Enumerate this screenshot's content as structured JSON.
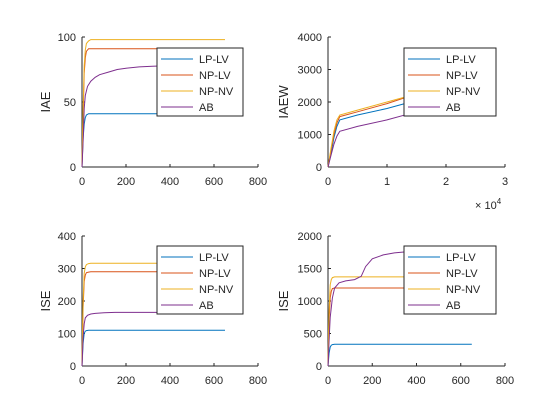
{
  "figure": {
    "background": "#ffffff",
    "axis_color": "#262626"
  },
  "chart_data": [
    {
      "type": "line",
      "ylabel": "IAE",
      "xlim": [
        0,
        800
      ],
      "ylim": [
        0,
        100
      ],
      "xticks": [
        0,
        200,
        400,
        600,
        800
      ],
      "yticks": [
        0,
        50,
        100
      ],
      "legend_position": "top-right",
      "series": [
        {
          "name": "LP-LV",
          "color": "#0072BD",
          "x": [
            0,
            5,
            10,
            15,
            20,
            30,
            40,
            60,
            80,
            120,
            200,
            400,
            650
          ],
          "y": [
            0,
            22,
            33,
            38,
            40,
            41,
            41,
            41,
            41,
            41,
            41,
            41,
            41
          ]
        },
        {
          "name": "NP-LV",
          "color": "#D95319",
          "x": [
            0,
            5,
            10,
            15,
            20,
            30,
            40,
            60,
            80,
            120,
            200,
            400,
            650
          ],
          "y": [
            0,
            38,
            72,
            84,
            89,
            91,
            91,
            91,
            91,
            91,
            91,
            91,
            91
          ]
        },
        {
          "name": "NP-NV",
          "color": "#EDB120",
          "x": [
            0,
            5,
            10,
            15,
            20,
            30,
            40,
            60,
            80,
            120,
            200,
            400,
            650
          ],
          "y": [
            0,
            45,
            78,
            90,
            95,
            97,
            98,
            98,
            98,
            98,
            98,
            98,
            98
          ]
        },
        {
          "name": "AB",
          "color": "#7E2F8E",
          "x": [
            0,
            5,
            10,
            15,
            25,
            40,
            60,
            80,
            120,
            160,
            200,
            260,
            320,
            400
          ],
          "y": [
            0,
            20,
            45,
            55,
            62,
            66,
            69,
            71,
            73,
            75,
            76,
            77,
            77.5,
            78
          ]
        }
      ]
    },
    {
      "type": "line",
      "ylabel": "IAEW",
      "xlim": [
        0,
        3
      ],
      "ylim": [
        0,
        4000
      ],
      "xticks": [
        0,
        1,
        2,
        3
      ],
      "yticks": [
        0,
        1000,
        2000,
        3000,
        4000
      ],
      "x_exponent": "× 10^4",
      "legend_position": "top-right",
      "series": [
        {
          "name": "LP-LV",
          "color": "#0072BD",
          "x": [
            0,
            0.05,
            0.1,
            0.15,
            0.2,
            0.5,
            1.0,
            1.5,
            2.0,
            2.5,
            2.75
          ],
          "y": [
            0,
            400,
            900,
            1250,
            1450,
            1600,
            1800,
            2050,
            2350,
            2650,
            2800
          ]
        },
        {
          "name": "NP-LV",
          "color": "#D95319",
          "x": [
            0,
            0.05,
            0.1,
            0.15,
            0.2,
            0.5,
            1.0,
            1.5,
            2.0,
            2.5,
            2.85
          ],
          "y": [
            0,
            500,
            1000,
            1350,
            1550,
            1700,
            1950,
            2250,
            2550,
            2850,
            3050
          ]
        },
        {
          "name": "NP-NV",
          "color": "#EDB120",
          "x": [
            0,
            0.05,
            0.1,
            0.15,
            0.2,
            0.5,
            1.0,
            1.5,
            2.0,
            2.5,
            2.85
          ],
          "y": [
            0,
            550,
            1100,
            1450,
            1600,
            1750,
            2000,
            2250,
            2500,
            2750,
            2900
          ]
        },
        {
          "name": "AB",
          "color": "#7E2F8E",
          "x": [
            0,
            0.05,
            0.1,
            0.15,
            0.2,
            0.5,
            1.0,
            1.5,
            2.0,
            2.5,
            2.85
          ],
          "y": [
            0,
            350,
            700,
            950,
            1100,
            1250,
            1450,
            1700,
            1950,
            2200,
            2400
          ]
        }
      ]
    },
    {
      "type": "line",
      "ylabel": "ISE",
      "xlim": [
        0,
        800
      ],
      "ylim": [
        0,
        400
      ],
      "xticks": [
        0,
        200,
        400,
        600,
        800
      ],
      "yticks": [
        0,
        100,
        200,
        300,
        400
      ],
      "legend_position": "top-right",
      "series": [
        {
          "name": "LP-LV",
          "color": "#0072BD",
          "x": [
            0,
            5,
            10,
            15,
            20,
            30,
            40,
            60,
            100,
            200,
            400,
            650
          ],
          "y": [
            0,
            70,
            100,
            107,
            109,
            110,
            110,
            110,
            110,
            110,
            110,
            110
          ]
        },
        {
          "name": "NP-LV",
          "color": "#D95319",
          "x": [
            0,
            5,
            10,
            15,
            20,
            30,
            40,
            60,
            100,
            200,
            400,
            650
          ],
          "y": [
            0,
            180,
            260,
            280,
            287,
            289,
            290,
            290,
            290,
            290,
            290,
            290
          ]
        },
        {
          "name": "NP-NV",
          "color": "#EDB120",
          "x": [
            0,
            5,
            10,
            15,
            20,
            30,
            40,
            60,
            100,
            200,
            400,
            650
          ],
          "y": [
            0,
            200,
            285,
            305,
            312,
            315,
            316,
            316,
            316,
            316,
            316,
            316
          ]
        },
        {
          "name": "AB",
          "color": "#7E2F8E",
          "x": [
            0,
            5,
            10,
            15,
            25,
            40,
            60,
            100,
            150,
            200,
            300,
            400
          ],
          "y": [
            0,
            90,
            130,
            148,
            156,
            160,
            162,
            164,
            165,
            165,
            165,
            165
          ]
        }
      ]
    },
    {
      "type": "line",
      "ylabel": "ISE",
      "xlim": [
        0,
        800
      ],
      "ylim": [
        0,
        2000
      ],
      "xticks": [
        0,
        200,
        400,
        600,
        800
      ],
      "yticks": [
        0,
        500,
        1000,
        1500,
        2000
      ],
      "legend_position": "top-right",
      "series": [
        {
          "name": "LP-LV",
          "color": "#0072BD",
          "x": [
            0,
            5,
            10,
            15,
            20,
            30,
            40,
            60,
            100,
            200,
            400,
            650
          ],
          "y": [
            0,
            200,
            290,
            320,
            330,
            335,
            335,
            335,
            335,
            335,
            335,
            335
          ]
        },
        {
          "name": "NP-LV",
          "color": "#D95319",
          "x": [
            0,
            5,
            10,
            15,
            20,
            30,
            40,
            60,
            100,
            200,
            400,
            650
          ],
          "y": [
            0,
            700,
            1050,
            1150,
            1190,
            1200,
            1200,
            1200,
            1200,
            1200,
            1200,
            1200
          ]
        },
        {
          "name": "NP-NV",
          "color": "#EDB120",
          "x": [
            0,
            5,
            10,
            15,
            20,
            30,
            40,
            60,
            100,
            200,
            400,
            650
          ],
          "y": [
            0,
            850,
            1250,
            1330,
            1360,
            1370,
            1370,
            1370,
            1370,
            1370,
            1370,
            1370
          ]
        },
        {
          "name": "AB",
          "color": "#7E2F8E",
          "x": [
            0,
            5,
            10,
            20,
            30,
            50,
            80,
            120,
            150,
            170,
            200,
            250,
            300,
            350,
            400
          ],
          "y": [
            0,
            400,
            750,
            1050,
            1200,
            1280,
            1310,
            1330,
            1380,
            1530,
            1650,
            1710,
            1740,
            1755,
            1760
          ]
        }
      ]
    }
  ]
}
